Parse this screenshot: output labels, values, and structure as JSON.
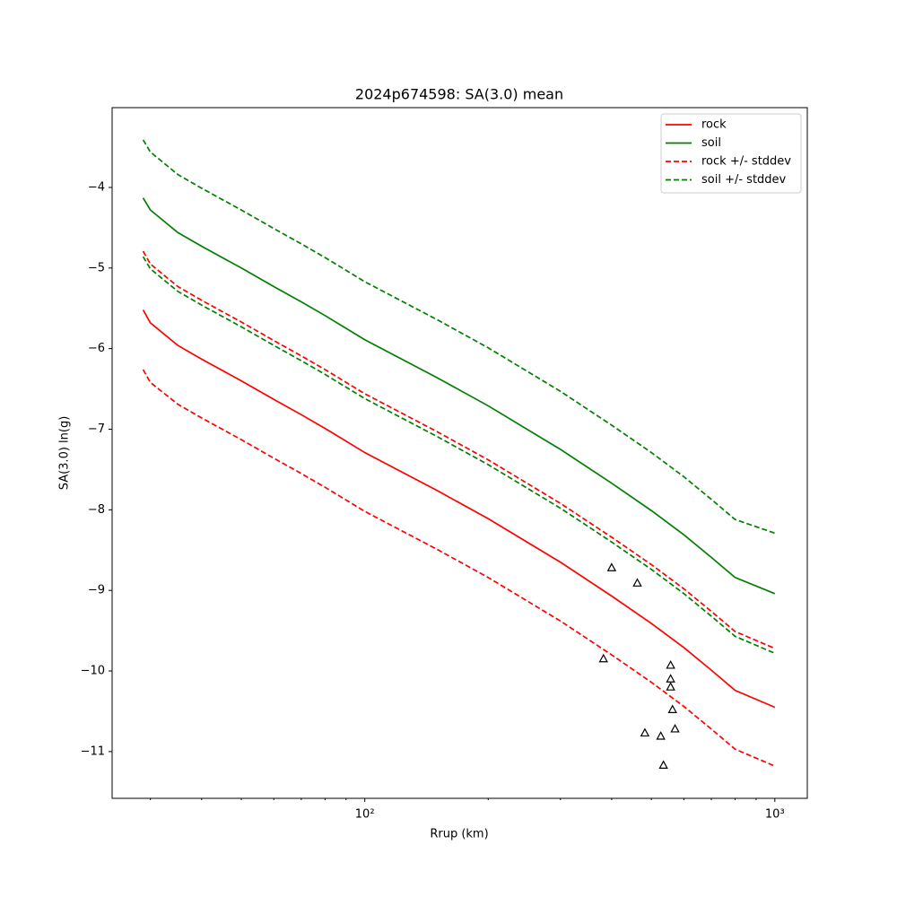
{
  "chart_data": {
    "type": "line",
    "title": "2024p674598: SA(3.0) mean",
    "x_label": "Rrup (km)",
    "y_label": "SA(3.0) ln(g)",
    "x_scale": "log",
    "xlim": [
      24.2,
      1200
    ],
    "ylim": [
      -11.58,
      -3.01
    ],
    "xticks": [
      {
        "value": 100,
        "label": "10²"
      },
      {
        "value": 1000,
        "label": "10³"
      }
    ],
    "xminorticks": [
      30,
      40,
      50,
      60,
      70,
      80,
      90,
      200,
      300,
      400,
      500,
      600,
      700,
      800,
      900
    ],
    "yticks": [
      {
        "value": -11,
        "label": "−11"
      },
      {
        "value": -10,
        "label": "−10"
      },
      {
        "value": -9,
        "label": "−9"
      },
      {
        "value": -8,
        "label": "−8"
      },
      {
        "value": -7,
        "label": "−7"
      },
      {
        "value": -6,
        "label": "−6"
      },
      {
        "value": -5,
        "label": "−5"
      },
      {
        "value": -4,
        "label": "−4"
      }
    ],
    "legend": "upper right",
    "x": [
      28.8,
      30,
      35,
      40,
      50,
      60,
      70,
      80,
      100,
      150,
      200,
      300,
      400,
      500,
      600,
      700,
      800,
      1000
    ],
    "series": [
      {
        "name": "rock",
        "color": "#ff0000",
        "style": "solid",
        "values": [
          -5.52,
          -5.68,
          -5.96,
          -6.13,
          -6.4,
          -6.63,
          -6.82,
          -6.99,
          -7.29,
          -7.76,
          -8.11,
          -8.65,
          -9.07,
          -9.41,
          -9.71,
          -9.99,
          -10.24,
          -10.45
        ]
      },
      {
        "name": "soil",
        "color": "#008000",
        "style": "solid",
        "values": [
          -4.13,
          -4.28,
          -4.56,
          -4.73,
          -5.0,
          -5.23,
          -5.42,
          -5.59,
          -5.89,
          -6.36,
          -6.71,
          -7.25,
          -7.67,
          -8.01,
          -8.31,
          -8.59,
          -8.84,
          -9.04
        ]
      },
      {
        "name": "rock +/- stddev",
        "color": "#ff0000",
        "style": "dashed",
        "upper": [
          -4.79,
          -4.95,
          -5.23,
          -5.4,
          -5.67,
          -5.9,
          -6.09,
          -6.26,
          -6.56,
          -7.03,
          -7.38,
          -7.92,
          -8.34,
          -8.68,
          -8.98,
          -9.26,
          -9.51,
          -9.72
        ],
        "lower": [
          -6.26,
          -6.42,
          -6.69,
          -6.86,
          -7.13,
          -7.36,
          -7.55,
          -7.72,
          -8.02,
          -8.49,
          -8.84,
          -9.38,
          -9.8,
          -10.14,
          -10.44,
          -10.72,
          -10.97,
          -11.18
        ]
      },
      {
        "name": "soil +/- stddev",
        "color": "#008000",
        "style": "dashed",
        "upper": [
          -3.41,
          -3.56,
          -3.84,
          -4.01,
          -4.28,
          -4.51,
          -4.7,
          -4.87,
          -5.17,
          -5.64,
          -5.99,
          -6.53,
          -6.95,
          -7.29,
          -7.59,
          -7.87,
          -8.12,
          -8.29
        ],
        "lower": [
          -4.86,
          -5.01,
          -5.29,
          -5.46,
          -5.73,
          -5.96,
          -6.15,
          -6.32,
          -6.62,
          -7.09,
          -7.44,
          -7.98,
          -8.4,
          -8.74,
          -9.04,
          -9.32,
          -9.57,
          -9.78
        ]
      }
    ],
    "observations": {
      "marker": "triangle",
      "color": "#000000",
      "x": [
        400,
        462,
        382,
        557,
        557,
        557,
        563,
        571,
        482,
        527,
        535
      ],
      "y": [
        -8.72,
        -8.91,
        -9.85,
        -9.93,
        -10.1,
        -10.2,
        -10.48,
        -10.72,
        -10.77,
        -10.81,
        -11.17
      ]
    }
  }
}
